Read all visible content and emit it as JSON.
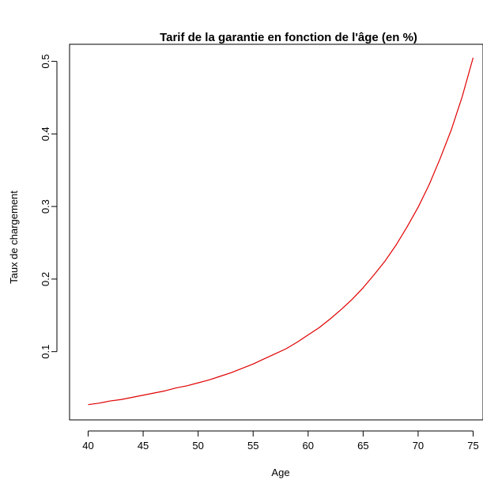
{
  "chart_data": {
    "type": "line",
    "title": "Tarif de la garantie en fonction de l'âge (en %)",
    "xlabel": "Age",
    "ylabel": "Taux de chargement",
    "xlim": [
      40,
      75
    ],
    "ylim": [
      0.025,
      0.505
    ],
    "xticks": [
      40,
      45,
      50,
      55,
      60,
      65,
      70,
      75
    ],
    "yticks": [
      0.1,
      0.2,
      0.3,
      0.4,
      0.5
    ],
    "grid": false,
    "series": [
      {
        "color": "#e00000",
        "x": [
          40,
          41,
          42,
          43,
          44,
          45,
          46,
          47,
          48,
          49,
          50,
          51,
          52,
          53,
          54,
          55,
          56,
          57,
          58,
          59,
          60,
          61,
          62,
          63,
          64,
          65,
          66,
          67,
          68,
          69,
          70,
          71,
          72,
          73,
          74,
          75
        ],
        "y": [
          0.027,
          0.029,
          0.032,
          0.034,
          0.037,
          0.04,
          0.043,
          0.046,
          0.05,
          0.053,
          0.057,
          0.061,
          0.066,
          0.071,
          0.077,
          0.083,
          0.09,
          0.097,
          0.104,
          0.113,
          0.123,
          0.133,
          0.145,
          0.158,
          0.172,
          0.188,
          0.206,
          0.225,
          0.247,
          0.272,
          0.299,
          0.33,
          0.366,
          0.405,
          0.451,
          0.505
        ]
      }
    ]
  }
}
